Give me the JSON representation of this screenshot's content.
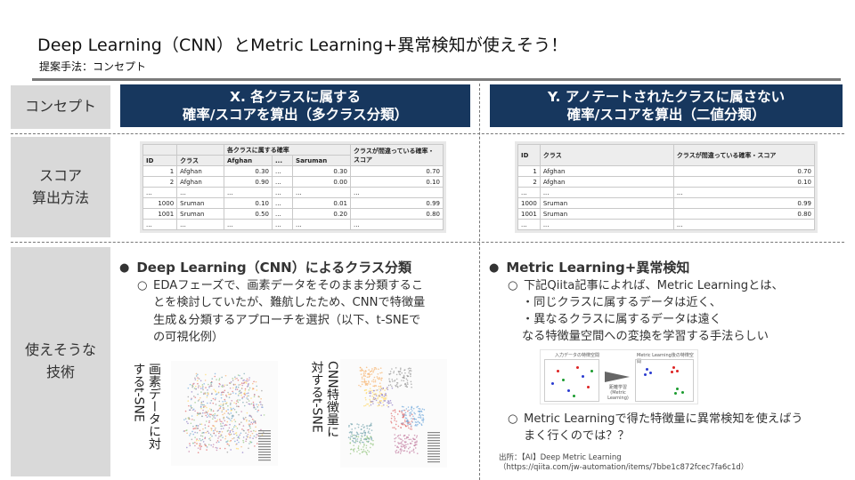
{
  "title": "Deep Learning（CNN）とMetric Learning+異常検知が使えそう！",
  "subtitle": "提案手法：コンセプト",
  "rows": {
    "concept": "コンセプト",
    "score_line1": "スコア",
    "score_line2": "算出方法",
    "tech_line1": "使えそうな",
    "tech_line2": "技術"
  },
  "columns": {
    "x_line1": "X. 各クラスに属する",
    "x_line2": "確率/スコアを算出（多クラス分類）",
    "y_line1": "Y. アノテートされたクラスに属さない",
    "y_line2": "確率/スコアを算出（二値分類）"
  },
  "table_x": {
    "group_header": "各クラスに属する確率",
    "last_header": "クラスが間違っている確率・スコア",
    "headers": [
      "ID",
      "クラス",
      "Afghan",
      "...",
      "Saruman"
    ],
    "rows": [
      [
        "1",
        "Afghan",
        "0.30",
        "...",
        "0.30",
        "0.70"
      ],
      [
        "2",
        "Afghan",
        "0.90",
        "...",
        "0.00",
        "0.10"
      ],
      [
        "...",
        "...",
        "...",
        "...",
        "...",
        "..."
      ],
      [
        "1000",
        "Sruman",
        "0.10",
        "...",
        "0.01",
        "0.99"
      ],
      [
        "1001",
        "Sruman",
        "0.50",
        "...",
        "0.20",
        "0.80"
      ],
      [
        "...",
        "...",
        "...",
        "...",
        "...",
        "..."
      ]
    ]
  },
  "table_y": {
    "headers": [
      "ID",
      "クラス",
      "クラスが間違っている確率・スコア"
    ],
    "rows": [
      [
        "1",
        "Afghan",
        "0.70"
      ],
      [
        "2",
        "Afghan",
        "0.10"
      ],
      [
        "...",
        "...",
        "..."
      ],
      [
        "1000",
        "Sruman",
        "0.99"
      ],
      [
        "1001",
        "Sruman",
        "0.80"
      ],
      [
        "...",
        "...",
        "..."
      ]
    ]
  },
  "left_section": {
    "heading": "Deep Learning（CNN）によるクラス分類",
    "sub1_l1": "EDAフェーズで、画素データをそのまま分類するこ",
    "sub1_l2": "とを検討していたが、難航したため、CNNで特徴量",
    "sub1_l3": "生成＆分類するアプローチを選択（以下、t-SNEで",
    "sub1_l4": "の可視化例）",
    "caption1_l1": "画素データに対",
    "caption1_l2": "するt-SNE",
    "caption2_l1": "CNN特徴量に",
    "caption2_l2": "対するt-SNE"
  },
  "right_section": {
    "heading": "Metric Learning+異常検知",
    "sub1_l1": "下記Qiita記事によれば、Metric Learningとは、",
    "sub1_l2": "・同じクラスに属するデータは近く、",
    "sub1_l3": "・異なるクラスに属するデータは遠く",
    "sub1_l4": "なる特徴量空間への変換を学習する手法らしい",
    "diagram_left": "入力データの特徴空間",
    "diagram_right": "Metric Learning後の特徴空間",
    "diagram_arrow": "距離学習(Metric Learning)",
    "sub2_l1": "Metric Learningで得た特徴量に異常検知を使えばう",
    "sub2_l2": "まく行くのでは？？",
    "source_l1": "出所：【AI】Deep Metric Learning",
    "source_l2": "（https://qiita.com/jw-automation/items/7bbe1c872fcec7fa6c1d）"
  },
  "colors": {
    "header_bg": "#17375e",
    "label_bg": "#d9d9d9",
    "rule": "#7b7b7b"
  }
}
